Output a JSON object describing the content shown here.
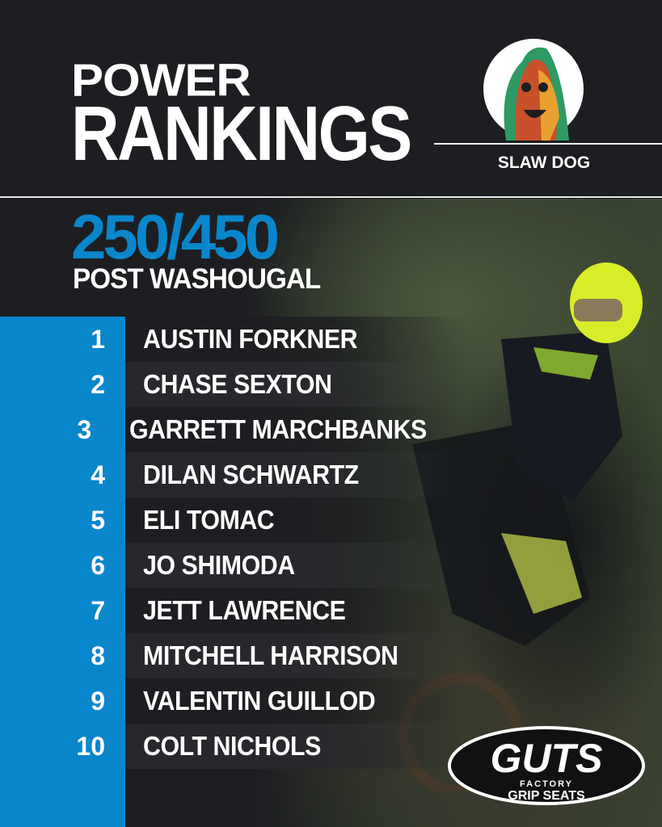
{
  "header": {
    "title_line1": "POWER",
    "title_line2": "RANKINGS",
    "author": "SLAW DOG",
    "author_logo": "slaw-dog-hotdog-mascot"
  },
  "classes": "250/450",
  "subtitle": "POST WASHOUGAL",
  "rankings": [
    {
      "rank": "1",
      "name": "AUSTIN FORKNER"
    },
    {
      "rank": "2",
      "name": "CHASE SEXTON"
    },
    {
      "rank": "3",
      "name": "GARRETT MARCHBANKS"
    },
    {
      "rank": "4",
      "name": "DILAN SCHWARTZ"
    },
    {
      "rank": "5",
      "name": "ELI TOMAC"
    },
    {
      "rank": "6",
      "name": "JO SHIMODA"
    },
    {
      "rank": "7",
      "name": "JETT LAWRENCE"
    },
    {
      "rank": "8",
      "name": "MITCHELL HARRISON"
    },
    {
      "rank": "9",
      "name": "VALENTIN GUILLOD"
    },
    {
      "rank": "10",
      "name": "COLT NICHOLS"
    }
  ],
  "sponsor": {
    "name": "GUTS",
    "line1": "FACTORY",
    "line2": "GRIP SEATS"
  },
  "colors": {
    "accent": "#0a86cc",
    "background": "#1d1e21",
    "text": "#ffffff"
  }
}
